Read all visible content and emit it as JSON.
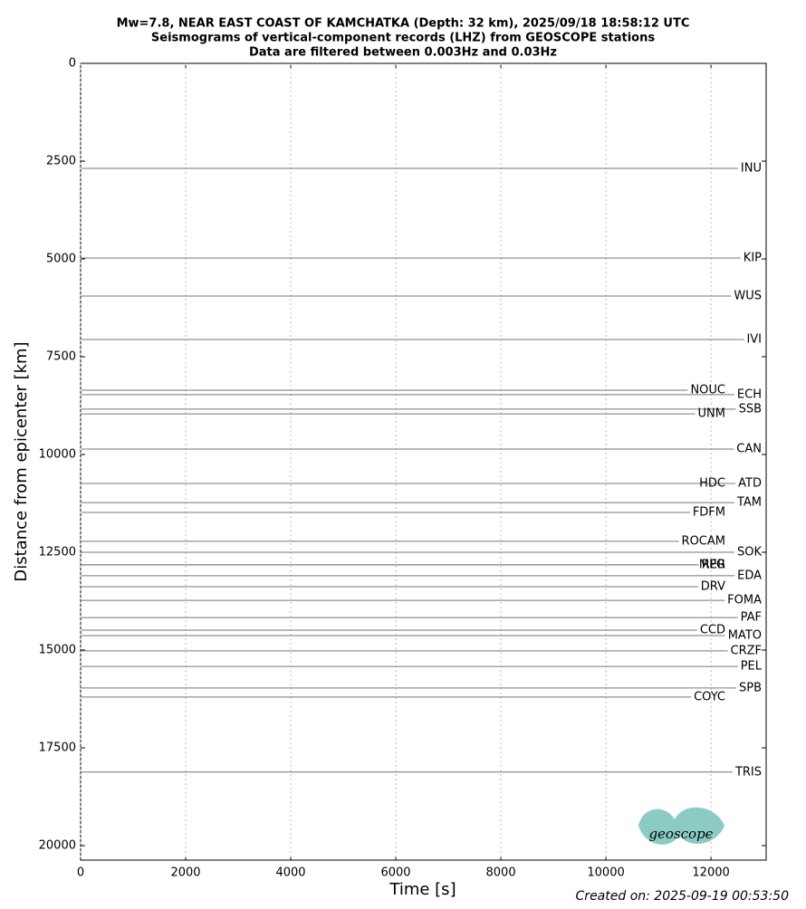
{
  "chart_data": {
    "type": "seismogram",
    "title": [
      "Mw=7.8, NEAR EAST COAST OF KAMCHATKA (Depth: 32 km), 2025/09/18 18:58:12 UTC",
      "Seismograms of vertical-component records (LHZ) from GEOSCOPE stations",
      "Data are filtered between 0.003Hz and 0.03Hz"
    ],
    "x_label": "Time [s]",
    "y_label": "Distance from epicenter [km]",
    "xlim": [
      0,
      13050
    ],
    "xticks": [
      0,
      2000,
      4000,
      6000,
      8000,
      10000,
      12000
    ],
    "ylim": [
      0,
      20370
    ],
    "yticks": [
      0,
      2500,
      5000,
      7500,
      10000,
      12500,
      15000,
      17500,
      20000
    ],
    "y_inverted": true,
    "grid": true,
    "color": "#777777",
    "categories": [
      "INU",
      "KIP",
      "WUS",
      "IVI",
      "ECH",
      "NOUC",
      "SSB",
      "UNM",
      "CAN",
      "ATD",
      "HDC",
      "TAM",
      "FDFM",
      "SOK",
      "ROCAM",
      "RER",
      "MPG",
      "EDA",
      "DRV",
      "FOMA",
      "PAF",
      "CCD",
      "MATO",
      "CRZF",
      "PEL",
      "SPB",
      "COYC",
      "TRIS"
    ],
    "values": [
      2685,
      4977,
      5950,
      7060,
      8470,
      8356,
      8840,
      8960,
      9860,
      10740,
      10740,
      11230,
      11480,
      12500,
      12220,
      12820,
      12820,
      13100,
      13380,
      13730,
      14170,
      14490,
      14630,
      15020,
      15420,
      15970,
      16200,
      18120
    ],
    "footer": "Created on: 2025-09-19 00:53:50",
    "logo": "geoscope"
  }
}
